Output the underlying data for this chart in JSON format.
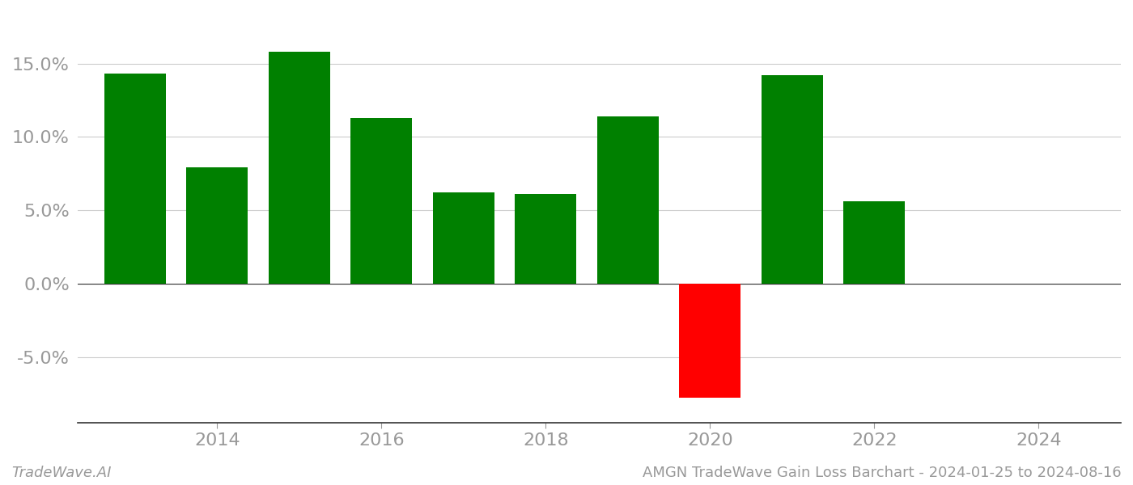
{
  "years": [
    2013,
    2014,
    2015,
    2016,
    2017,
    2018,
    2019,
    2020,
    2021,
    2022,
    2023
  ],
  "values": [
    14.3,
    7.9,
    15.8,
    11.3,
    6.2,
    6.1,
    11.4,
    -7.8,
    14.2,
    5.6,
    0.0
  ],
  "bar_colors": [
    "#008000",
    "#008000",
    "#008000",
    "#008000",
    "#008000",
    "#008000",
    "#008000",
    "#ff0000",
    "#008000",
    "#008000",
    "#ffffff"
  ],
  "xlim": [
    2012.3,
    2025.0
  ],
  "ylim": [
    -9.5,
    18.5
  ],
  "yticks": [
    -5.0,
    0.0,
    5.0,
    10.0,
    15.0
  ],
  "xticks": [
    2014,
    2016,
    2018,
    2020,
    2022,
    2024
  ],
  "background_color": "#ffffff",
  "grid_color": "#cccccc",
  "bar_width": 0.75,
  "footer_left": "TradeWave.AI",
  "footer_right": "AMGN TradeWave Gain Loss Barchart - 2024-01-25 to 2024-08-16",
  "tick_color": "#999999",
  "spine_color": "#333333",
  "tick_fontsize": 16,
  "footer_fontsize": 13
}
